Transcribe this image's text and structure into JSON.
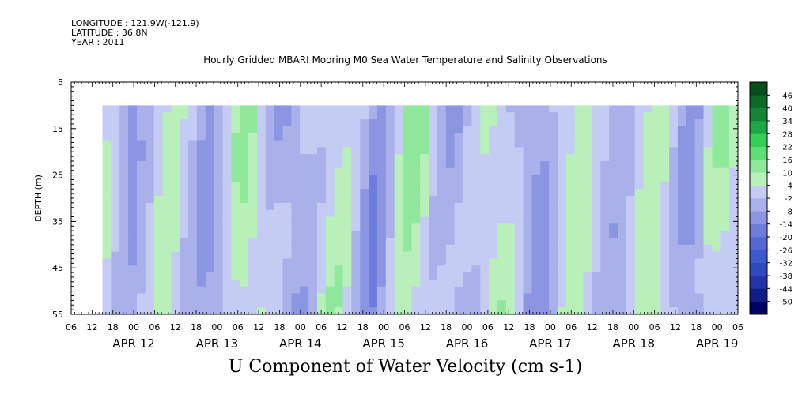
{
  "header": {
    "longitude": "LONGITUDE : 121.9W(-121.9)",
    "latitude": "LATITUDE : 36.8N",
    "year": "YEAR : 2011"
  },
  "title": "Hourly Gridded MBARI Mooring M0 Sea Water Temperature and Salinity Observations",
  "footer_title": "U Component of Water Velocity (cm s-1)",
  "chart_data": {
    "type": "heatmap",
    "variable": "U Component of Water Velocity (cm s-1)",
    "ylabel": "DEPTH (m)",
    "ylim": [
      5,
      55
    ],
    "y_inverted": true,
    "y_ticks": [
      5,
      15,
      25,
      35,
      45,
      55
    ],
    "depth_data_range": [
      10,
      55
    ],
    "x_hour_ticks": [
      "06",
      "12",
      "18",
      "00",
      "06",
      "12",
      "18",
      "00",
      "06",
      "12",
      "18",
      "00",
      "06",
      "12",
      "18",
      "00",
      "06",
      "12",
      "18",
      "00",
      "06",
      "12",
      "18",
      "00",
      "06",
      "12",
      "18",
      "00",
      "06",
      "12",
      "18",
      "00",
      "06"
    ],
    "x_date_labels": [
      "APR 12",
      "APR 13",
      "APR 14",
      "APR 15",
      "APR 16",
      "APR 17",
      "APR 18",
      "APR 19"
    ],
    "x_range_hours_from_apr12_00": [
      -18,
      174
    ],
    "data_start_hour": -9,
    "data_end_hour": 174,
    "colorbar": {
      "levels": [
        -50,
        -44,
        -38,
        -32,
        -26,
        -20,
        -14,
        -8,
        -2,
        4,
        10,
        16,
        22,
        28,
        34,
        40,
        46
      ],
      "colors": [
        "#000066",
        "#0f1d86",
        "#2235a8",
        "#3048c0",
        "#3d5acc",
        "#5468d4",
        "#6e7ddc",
        "#8b95e2",
        "#a9b0ea",
        "#c5ccf3",
        "#b9f0b9",
        "#8fe89b",
        "#5edf75",
        "#35cf58",
        "#1ea845",
        "#148535",
        "#0c6a28",
        "#064e1c"
      ]
    },
    "column_anomalies_cm_s": [
      2,
      -3,
      -9,
      -11,
      -7,
      -2,
      5,
      8,
      6,
      1,
      -4,
      -8,
      -10,
      -6,
      0,
      6,
      10,
      9,
      4,
      -2,
      -7,
      -11,
      -12,
      -8,
      -2,
      4,
      8,
      7,
      3,
      -3,
      -9,
      -12,
      -9,
      -3,
      4,
      9,
      11,
      8,
      2,
      -4,
      -9,
      -11,
      -7,
      -1,
      5,
      9,
      8,
      4,
      -2,
      -8,
      -11,
      -9,
      -3,
      3,
      7,
      9,
      6,
      0,
      -6,
      -10,
      -8,
      -2,
      4,
      8,
      10,
      5,
      -1,
      -6,
      -9,
      -6,
      1,
      6,
      9,
      7
    ]
  }
}
